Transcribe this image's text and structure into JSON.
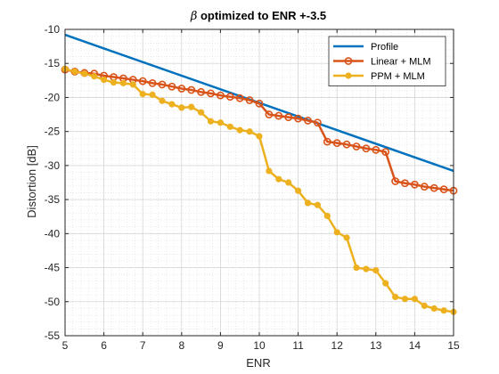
{
  "chart_data": {
    "type": "line",
    "title_symbol": "β",
    "title_rest": " optimized to ENR +-3.5",
    "xlabel": "ENR",
    "ylabel": "Distortion [dB]",
    "xlim": [
      5,
      15
    ],
    "ylim": [
      -55,
      -10
    ],
    "xticks": [
      5,
      6,
      7,
      8,
      9,
      10,
      11,
      12,
      13,
      14,
      15
    ],
    "yticks": [
      -55,
      -50,
      -45,
      -40,
      -35,
      -30,
      -25,
      -20,
      -15,
      -10
    ],
    "grid": true,
    "minor_grid": true,
    "legend_position": "top-right",
    "series": [
      {
        "name": "Profile",
        "color": "#0072BD",
        "marker": "none",
        "x": [
          5,
          15
        ],
        "y": [
          -10.8,
          -30.8
        ]
      },
      {
        "name": "Linear + MLM",
        "color": "#D95319",
        "marker": "circle-open",
        "x": [
          5.0,
          5.25,
          5.5,
          5.75,
          6.0,
          6.25,
          6.5,
          6.75,
          7.0,
          7.25,
          7.5,
          7.75,
          8.0,
          8.25,
          8.5,
          8.75,
          9.0,
          9.25,
          9.5,
          9.75,
          10.0,
          10.25,
          10.5,
          10.75,
          11.0,
          11.25,
          11.5,
          11.75,
          12.0,
          12.25,
          12.5,
          12.75,
          13.0,
          13.25,
          13.5,
          13.75,
          14.0,
          14.25,
          14.5,
          14.75,
          15.0
        ],
        "y": [
          -15.9,
          -16.2,
          -16.4,
          -16.5,
          -16.8,
          -17.0,
          -17.2,
          -17.4,
          -17.6,
          -17.9,
          -18.1,
          -18.4,
          -18.7,
          -18.9,
          -19.2,
          -19.4,
          -19.7,
          -19.9,
          -20.1,
          -20.4,
          -20.9,
          -22.5,
          -22.7,
          -22.9,
          -23.1,
          -23.4,
          -23.7,
          -26.5,
          -26.7,
          -26.9,
          -27.2,
          -27.5,
          -27.7,
          -28.0,
          -32.3,
          -32.6,
          -32.8,
          -33.1,
          -33.3,
          -33.5,
          -33.7
        ]
      },
      {
        "name": "PPM + MLM",
        "color": "#EDB120",
        "marker": "circle-filled",
        "x": [
          5.0,
          5.25,
          5.5,
          5.75,
          6.0,
          6.25,
          6.5,
          6.75,
          7.0,
          7.25,
          7.5,
          7.75,
          8.0,
          8.25,
          8.5,
          8.75,
          9.0,
          9.25,
          9.5,
          9.75,
          10.0,
          10.25,
          10.5,
          10.75,
          11.0,
          11.25,
          11.5,
          11.75,
          12.0,
          12.25,
          12.5,
          12.75,
          13.0,
          13.25,
          13.5,
          13.75,
          14.0,
          14.25,
          14.5,
          14.75,
          15.0
        ],
        "y": [
          -15.8,
          -16.2,
          -16.5,
          -16.9,
          -17.4,
          -17.8,
          -17.9,
          -18.1,
          -19.5,
          -19.6,
          -20.5,
          -21.0,
          -21.5,
          -21.4,
          -22.2,
          -23.5,
          -23.7,
          -24.3,
          -24.8,
          -25.0,
          -25.7,
          -30.8,
          -32.0,
          -32.5,
          -33.7,
          -35.5,
          -35.8,
          -37.4,
          -39.8,
          -40.6,
          -45.0,
          -45.2,
          -45.4,
          -47.3,
          -49.3,
          -49.6,
          -49.6,
          -50.6,
          -51.0,
          -51.3,
          -51.5
        ]
      }
    ]
  }
}
